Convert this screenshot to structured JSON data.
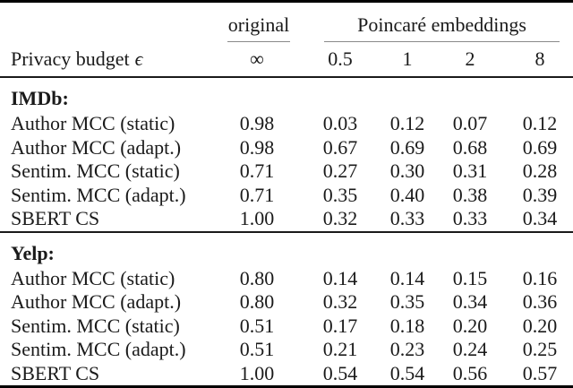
{
  "table": {
    "header": {
      "group_original": "original",
      "group_poincare": "Poincaré embeddings",
      "row_label": "Privacy budget",
      "epsilon": "ϵ",
      "infinity": "∞",
      "col_values": [
        "0.5",
        "1",
        "2",
        "8"
      ]
    },
    "sections": [
      {
        "title": "IMDb:",
        "rows": [
          {
            "label": "Author MCC (static)",
            "values": [
              "0.98",
              "0.03",
              "0.12",
              "0.07",
              "0.12"
            ]
          },
          {
            "label": "Author MCC (adapt.)",
            "values": [
              "0.98",
              "0.67",
              "0.69",
              "0.68",
              "0.69"
            ]
          },
          {
            "label": "Sentim. MCC (static)",
            "values": [
              "0.71",
              "0.27",
              "0.30",
              "0.31",
              "0.28"
            ]
          },
          {
            "label": "Sentim. MCC (adapt.)",
            "values": [
              "0.71",
              "0.35",
              "0.40",
              "0.38",
              "0.39"
            ]
          },
          {
            "label": "SBERT CS",
            "values": [
              "1.00",
              "0.32",
              "0.33",
              "0.33",
              "0.34"
            ]
          }
        ]
      },
      {
        "title": "Yelp:",
        "rows": [
          {
            "label": "Author MCC (static)",
            "values": [
              "0.80",
              "0.14",
              "0.14",
              "0.15",
              "0.16"
            ]
          },
          {
            "label": "Author MCC (adapt.)",
            "values": [
              "0.80",
              "0.32",
              "0.35",
              "0.34",
              "0.36"
            ]
          },
          {
            "label": "Sentim. MCC (static)",
            "values": [
              "0.51",
              "0.17",
              "0.18",
              "0.20",
              "0.20"
            ]
          },
          {
            "label": "Sentim. MCC (adapt.)",
            "values": [
              "0.51",
              "0.21",
              "0.23",
              "0.24",
              "0.25"
            ]
          },
          {
            "label": "SBERT CS",
            "values": [
              "1.00",
              "0.54",
              "0.54",
              "0.56",
              "0.57"
            ]
          }
        ]
      }
    ]
  },
  "colors": {
    "text": "#1a1a1a",
    "rule_heavy": "#000000",
    "rule_mid": "#1a1a1a",
    "rule_light": "#8a8a8a",
    "background": "#ffffff"
  }
}
